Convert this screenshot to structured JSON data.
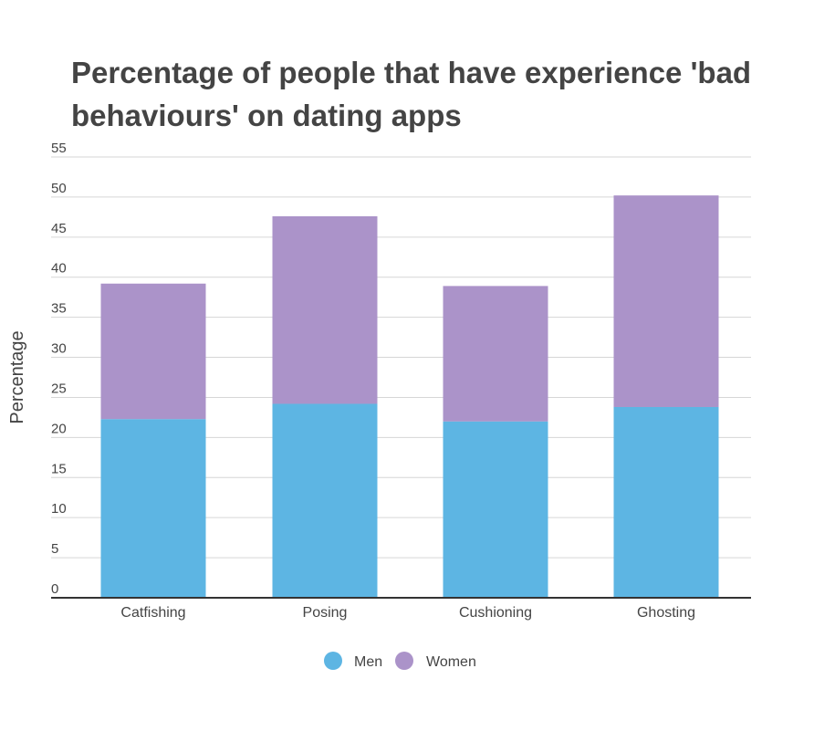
{
  "chart_data": {
    "type": "bar",
    "stacked": true,
    "title": "Percentage of people that have experience 'bad behaviours' on dating apps",
    "xlabel": "",
    "ylabel": "Percentage",
    "categories": [
      "Catfishing",
      "Posing",
      "Cushioning",
      "Ghosting"
    ],
    "series": [
      {
        "name": "Men",
        "color": "#5db5e3",
        "values": [
          22.3,
          24.2,
          22.0,
          23.8
        ]
      },
      {
        "name": "Women",
        "color": "#ab93c9",
        "values": [
          16.9,
          23.4,
          16.9,
          26.4
        ]
      }
    ],
    "ylim": [
      0,
      55
    ],
    "yticks": [
      0,
      5,
      10,
      15,
      20,
      25,
      30,
      35,
      40,
      45,
      50,
      55
    ],
    "grid": true,
    "legend_position": "bottom-center"
  }
}
